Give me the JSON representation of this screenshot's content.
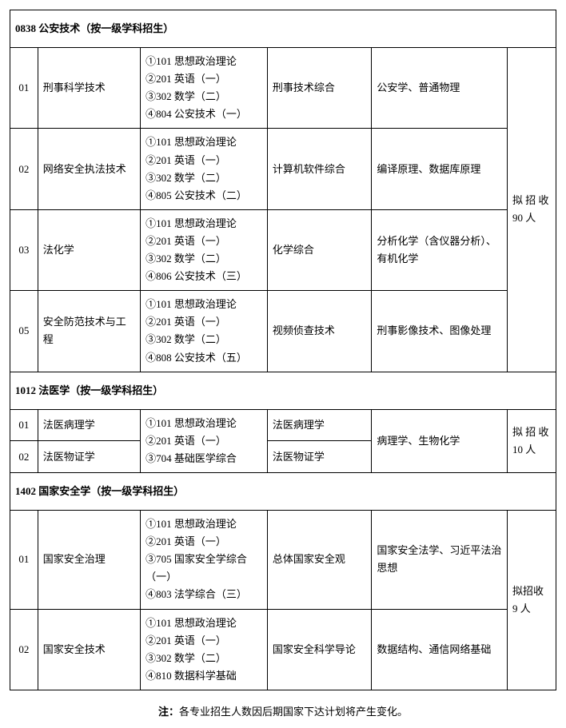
{
  "sections": [
    {
      "header": "0838 公安技术（按一级学科招生）",
      "quota": "拟 招 收 90 人",
      "rows": [
        {
          "code": "01",
          "name": "刑事科学技术",
          "exam": "①101 思想政治理论\n②201 英语（一）\n③302 数学（二）\n④804 公安技术（一）",
          "retest": "刑事技术综合",
          "equiv": "公安学、普通物理"
        },
        {
          "code": "02",
          "name": "网络安全执法技术",
          "exam": "①101 思想政治理论\n②201 英语（一）\n③302 数学（二）\n④805 公安技术（二）",
          "retest": "计算机软件综合",
          "equiv": "编译原理、数据库原理"
        },
        {
          "code": "03",
          "name": "法化学",
          "exam": "①101 思想政治理论\n②201 英语（一）\n③302 数学（二）\n④806 公安技术（三）",
          "retest": "化学综合",
          "equiv": "分析化学（含仪器分析）、有机化学"
        },
        {
          "code": "05",
          "name": "安全防范技术与工程",
          "exam": "①101 思想政治理论\n②201 英语（一）\n③302 数学（二）\n④808 公安技术（五）",
          "retest": "视频侦查技术",
          "equiv": "刑事影像技术、图像处理"
        }
      ]
    },
    {
      "header": "1012 法医学（按一级学科招生）",
      "quota": "拟 招 收 10 人",
      "shared_exam": "①101 思想政治理论\n②201 英语（一）\n③704 基础医学综合",
      "shared_equiv": "病理学、生物化学",
      "rows": [
        {
          "code": "01",
          "name": "法医病理学",
          "retest": "法医病理学"
        },
        {
          "code": "02",
          "name": "法医物证学",
          "retest": "法医物证学"
        }
      ]
    },
    {
      "header": "1402 国家安全学（按一级学科招生）",
      "quota": "拟招收 9 人",
      "rows": [
        {
          "code": "01",
          "name": "国家安全治理",
          "exam": "①101 思想政治理论\n②201 英语（一）\n③705 国家安全学综合（一）\n④803 法学综合（三）",
          "retest": "总体国家安全观",
          "equiv": "国家安全法学、习近平法治思想"
        },
        {
          "code": "02",
          "name": "国家安全技术",
          "exam": "①101 思想政治理论\n②201 英语（一）\n③302 数学（二）\n④810 数据科学基础",
          "retest": "国家安全科学导论",
          "equiv": "数据结构、通信网络基础"
        }
      ]
    }
  ],
  "footnote": {
    "label": "注：",
    "text": "各专业招生人数因后期国家下达计划将产生变化。"
  }
}
